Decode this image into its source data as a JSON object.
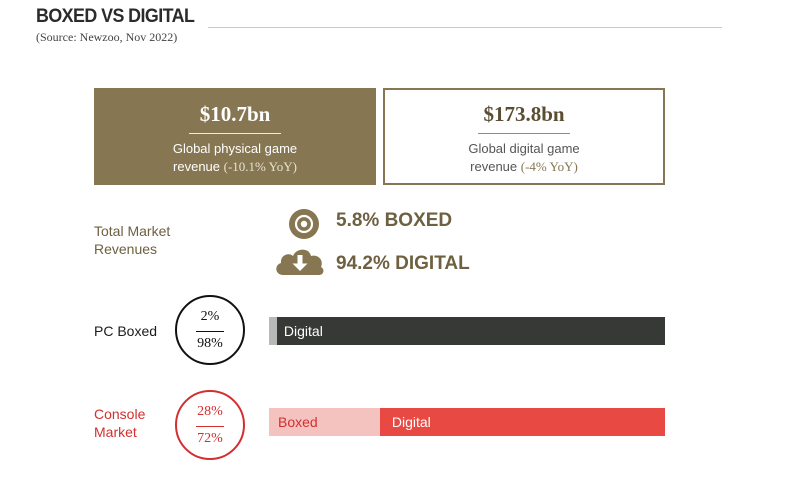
{
  "header": {
    "title": "BOXED VS DIGITAL",
    "source": "(Source: Newzoo, Nov 2022)"
  },
  "colors": {
    "gold": "#867752",
    "gold_text": "#6e6040",
    "dark": "#373936",
    "red": "#e84a43",
    "red_light": "#f4c3c0",
    "pc_boxed_grey": "#b8b8b8"
  },
  "cards": {
    "physical": {
      "amount": "$10.7bn",
      "line1": "Global physical game",
      "line2": "revenue",
      "yoy": "(-10.1% YoY)"
    },
    "digital": {
      "amount": "$173.8bn",
      "line1": "Global digital game",
      "line2": "revenue",
      "yoy": "(-4% YoY)"
    }
  },
  "market": {
    "label_line1": "Total Market",
    "label_line2": "Revenues",
    "boxed_text": "5.8% BOXED",
    "digital_text": "94.2% DIGITAL",
    "boxed_icon": "disc-icon",
    "digital_icon": "cloud-download-icon"
  },
  "chart_data": {
    "type": "bar",
    "stacked": true,
    "normalized": true,
    "categories": [
      "PC Boxed",
      "Console Market"
    ],
    "series": [
      {
        "name": "Boxed",
        "values": [
          2,
          28
        ]
      },
      {
        "name": "Digital",
        "values": [
          98,
          72
        ]
      }
    ],
    "ylim": [
      0,
      100
    ]
  },
  "rows": {
    "pc": {
      "label": "PC Boxed",
      "boxed_pct": "2%",
      "digital_pct": "98%",
      "digital_bar_label": "Digital"
    },
    "console": {
      "label_line1": "Console",
      "label_line2": "Market",
      "boxed_pct": "28%",
      "digital_pct": "72%",
      "boxed_bar_label": "Boxed",
      "digital_bar_label": "Digital"
    }
  }
}
